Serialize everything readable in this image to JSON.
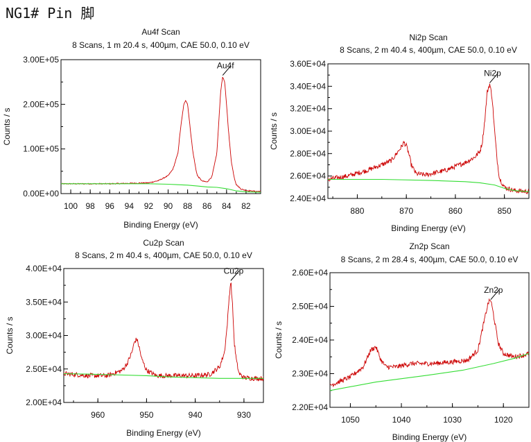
{
  "page": {
    "title": "NG1# Pin 脚"
  },
  "colors": {
    "spectrum": "#cc0000",
    "background_line": "#33dd33",
    "axis": "#000000"
  },
  "chart_data": [
    {
      "type": "line",
      "title": "Au4f Scan",
      "subtitle": "8 Scans,  1 m 20.4 s,  400µm,  CAE 50.0,  0.10 eV",
      "xlabel": "Binding Energy (eV)",
      "ylabel": "Counts / s",
      "xlim": [
        101,
        80.5
      ],
      "ylim": [
        0,
        300000
      ],
      "x_reversed": true,
      "xticks": [
        100,
        98,
        96,
        94,
        92,
        90,
        88,
        86,
        84,
        82
      ],
      "xtick_labels": [
        "100",
        "98",
        "96",
        "94",
        "92",
        "90",
        "88",
        "86",
        "84",
        "82"
      ],
      "yticks": [
        0,
        100000,
        200000,
        300000
      ],
      "ytick_labels": [
        "0.00E+00",
        "1.00E+05",
        "2.00E+05",
        "3.00E+05"
      ],
      "peaks": [
        {
          "label": "Au4f",
          "x": 84.4,
          "y": 265000
        }
      ],
      "series": [
        {
          "role": "spectrum",
          "x": [
            101,
            96,
            92,
            91,
            90,
            89.5,
            89,
            88.7,
            88.4,
            88.2,
            88.0,
            87.8,
            87.5,
            87.2,
            87.0,
            86.5,
            86.0,
            85.5,
            85.0,
            84.8,
            84.6,
            84.4,
            84.2,
            84.0,
            83.8,
            83.5,
            83.2,
            83.0,
            82.5,
            82.0,
            81.0,
            80.5
          ],
          "y": [
            22000,
            22000,
            24000,
            29000,
            40000,
            55000,
            90000,
            150000,
            198000,
            210000,
            200000,
            160000,
            100000,
            60000,
            40000,
            28000,
            26000,
            38000,
            90000,
            160000,
            230000,
            262000,
            250000,
            200000,
            140000,
            70000,
            35000,
            20000,
            10000,
            7000,
            5000,
            5000
          ]
        },
        {
          "role": "background",
          "x": [
            101,
            96,
            92,
            90,
            88,
            87,
            86,
            85,
            84,
            83,
            82,
            80.5
          ],
          "y": [
            22000,
            22000,
            22000,
            21000,
            19000,
            17000,
            15000,
            14000,
            11000,
            6000,
            4000,
            3000
          ]
        }
      ]
    },
    {
      "type": "line",
      "title": "Ni2p Scan",
      "subtitle": "8 Scans,  2 m 40.4 s,  400µm,  CAE 50.0,  0.10 eV",
      "xlabel": "Binding Energy (eV)",
      "ylabel": "Counts / s",
      "xlim": [
        886,
        845
      ],
      "ylim": [
        24000,
        36000
      ],
      "x_reversed": true,
      "xticks": [
        880,
        870,
        860,
        850
      ],
      "xtick_labels": [
        "880",
        "870",
        "860",
        "850"
      ],
      "yticks": [
        24000,
        26000,
        28000,
        30000,
        32000,
        34000,
        36000
      ],
      "ytick_labels": [
        "2.40E+04",
        "2.60E+04",
        "2.80E+04",
        "3.00E+04",
        "3.20E+04",
        "3.40E+04",
        "3.60E+04"
      ],
      "peaks": [
        {
          "label": "Ni2p",
          "x": 853.0,
          "y": 34300
        }
      ],
      "series": [
        {
          "role": "spectrum",
          "x": [
            886,
            882,
            878,
            875,
            873,
            872,
            871,
            870.5,
            870,
            869.5,
            869,
            868,
            866,
            862,
            858,
            856,
            855,
            854.5,
            854,
            853.5,
            853,
            852.5,
            852,
            851.5,
            851,
            850,
            848,
            845
          ],
          "y": [
            25700,
            26000,
            26500,
            27000,
            27400,
            28000,
            28600,
            29000,
            28700,
            28000,
            27000,
            26200,
            26100,
            26500,
            27200,
            27700,
            28200,
            29000,
            31000,
            33500,
            34200,
            33000,
            30000,
            27500,
            25800,
            25000,
            24700,
            24600
          ]
        },
        {
          "role": "background",
          "x": [
            886,
            875,
            865,
            858,
            855,
            852,
            850,
            848,
            845
          ],
          "y": [
            25700,
            25700,
            25600,
            25500,
            25400,
            25200,
            24900,
            24700,
            24600
          ]
        }
      ]
    },
    {
      "type": "line",
      "title": "Cu2p Scan",
      "subtitle": "8 Scans,  2 m 40.4 s,  400µm,  CAE 50.0,  0.10 eV",
      "xlabel": "Binding Energy (eV)",
      "ylabel": "Counts / s",
      "xlim": [
        967,
        926
      ],
      "ylim": [
        20000,
        40000
      ],
      "x_reversed": true,
      "xticks": [
        960,
        950,
        940,
        930
      ],
      "xtick_labels": [
        "960",
        "950",
        "940",
        "930"
      ],
      "yticks": [
        20000,
        25000,
        30000,
        35000,
        40000
      ],
      "ytick_labels": [
        "2.00E+04",
        "2.50E+04",
        "3.00E+04",
        "3.50E+04",
        "4.00E+04"
      ],
      "peaks": [
        {
          "label": "Cu2p",
          "x": 932.7,
          "y": 38200
        }
      ],
      "series": [
        {
          "role": "spectrum",
          "x": [
            967,
            962,
            958,
            955,
            954,
            953,
            952.5,
            952,
            951.5,
            951,
            950,
            948,
            944,
            940,
            937,
            935,
            934,
            933.5,
            933,
            932.7,
            932.3,
            932,
            931.5,
            931,
            930,
            928,
            926
          ],
          "y": [
            24300,
            24000,
            24000,
            24800,
            25800,
            27500,
            29000,
            29500,
            28200,
            26500,
            24800,
            24000,
            24000,
            24000,
            24200,
            25300,
            27500,
            31000,
            36000,
            38200,
            34000,
            29000,
            26000,
            24300,
            23700,
            23600,
            23600
          ]
        },
        {
          "role": "background",
          "x": [
            967,
            960,
            950,
            945,
            940,
            935,
            930,
            926
          ],
          "y": [
            24300,
            24200,
            24000,
            23800,
            23700,
            23600,
            23600,
            23600
          ]
        }
      ]
    },
    {
      "type": "line",
      "title": "Zn2p Scan",
      "subtitle": "8 Scans,  2 m 28.4 s,  400µm,  CAE 50.0,  0.10 eV",
      "xlabel": "Binding Energy (eV)",
      "ylabel": "Counts / s",
      "xlim": [
        1054,
        1015
      ],
      "ylim": [
        22000,
        26000
      ],
      "x_reversed": true,
      "xticks": [
        1050,
        1040,
        1030,
        1020
      ],
      "xtick_labels": [
        "1050",
        "1040",
        "1030",
        "1020"
      ],
      "yticks": [
        22000,
        23000,
        24000,
        25000,
        26000
      ],
      "ytick_labels": [
        "2.20E+04",
        "2.30E+04",
        "2.40E+04",
        "2.50E+04",
        "2.60E+04"
      ],
      "peaks": [
        {
          "label": "Zn2p",
          "x": 1022.5,
          "y": 25200
        }
      ],
      "series": [
        {
          "role": "spectrum",
          "x": [
            1054,
            1050,
            1047.5,
            1046,
            1045,
            1044,
            1043,
            1041,
            1038,
            1034,
            1030,
            1027,
            1025,
            1024,
            1023,
            1022.5,
            1022,
            1021,
            1020,
            1018,
            1016,
            1015
          ],
          "y": [
            22650,
            22900,
            23200,
            23700,
            23800,
            23400,
            23200,
            23200,
            23300,
            23300,
            23350,
            23400,
            23700,
            24400,
            25100,
            25200,
            24800,
            23900,
            23600,
            23500,
            23550,
            23600
          ]
        },
        {
          "role": "background",
          "x": [
            1054,
            1045,
            1035,
            1028,
            1022,
            1018,
            1015
          ],
          "y": [
            22500,
            22750,
            22950,
            23100,
            23300,
            23450,
            23600
          ]
        }
      ]
    }
  ]
}
